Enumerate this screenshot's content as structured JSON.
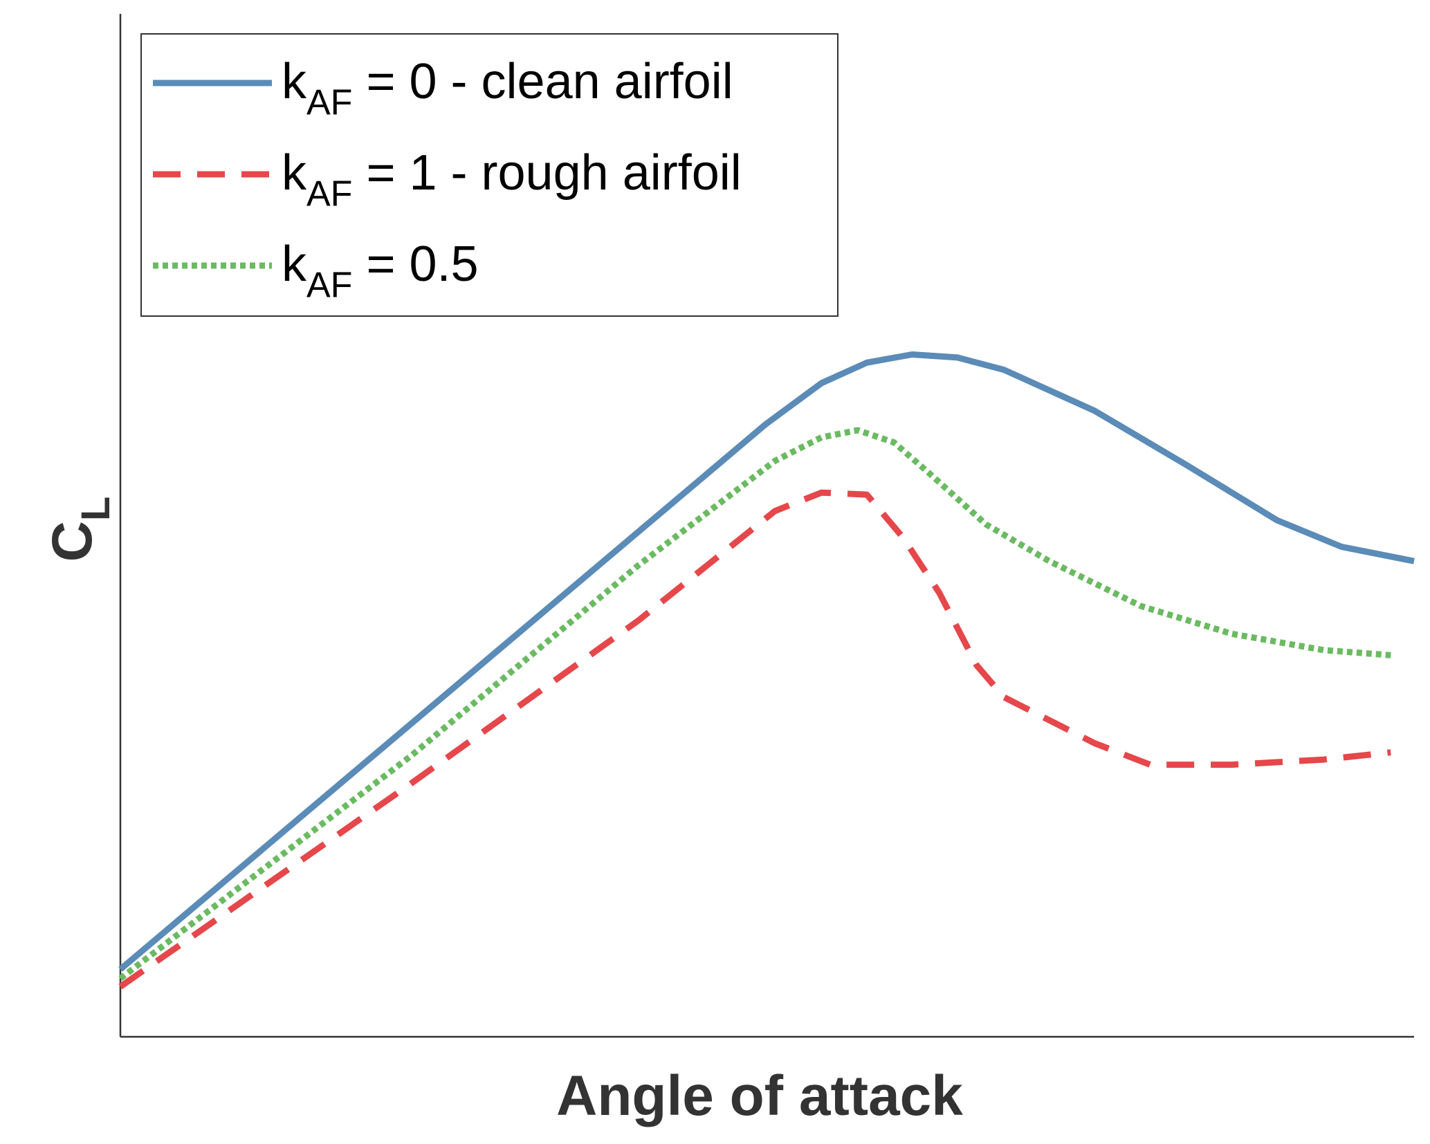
{
  "chart_data": {
    "type": "line",
    "x_label": "Angle of attack",
    "y_label": "CL",
    "xlim": [
      0,
      100
    ],
    "ylim": [
      0,
      100
    ],
    "legend": "upper left",
    "grid": false,
    "series": [
      {
        "name": "kAF = 0 - clean airfoil",
        "color": "#5b8bb7",
        "style": "solid",
        "x": [
          0,
          49.9,
          54.2,
          57.7,
          61.2,
          64.7,
          68.3,
          75.3,
          82.4,
          89.4,
          94.4,
          100
        ],
        "values": [
          6.6,
          59.9,
          63.9,
          65.9,
          66.7,
          66.4,
          65.2,
          61.2,
          55.9,
          50.5,
          47.9,
          46.5
        ]
      },
      {
        "name": "kAF = 1 - rough airfoil",
        "color": "#e5474b",
        "style": "dashed",
        "x": [
          0,
          22.4,
          40.05,
          50.6,
          54.2,
          57.7,
          60.5,
          63.3,
          66.2,
          68.3,
          75.3,
          79.6,
          85.9,
          93.0,
          98.2
        ],
        "values": [
          4.9,
          24.7,
          40.7,
          51.4,
          53.2,
          53.0,
          48.8,
          43.4,
          36.3,
          33.2,
          28.7,
          26.6,
          26.6,
          27.1,
          27.8
        ]
      },
      {
        "name": "kAF = 0.5",
        "color": "#6bba62",
        "style": "dotted",
        "x": [
          0,
          22.4,
          40.05,
          50.6,
          54.2,
          57.0,
          59.8,
          62.6,
          66.9,
          71.8,
          78.9,
          85.9,
          93.0,
          98.2
        ],
        "values": [
          5.7,
          27.4,
          46.1,
          56.3,
          58.6,
          59.3,
          58.1,
          55.0,
          50.1,
          46.5,
          42.1,
          39.4,
          37.8,
          37.3
        ]
      }
    ]
  }
}
